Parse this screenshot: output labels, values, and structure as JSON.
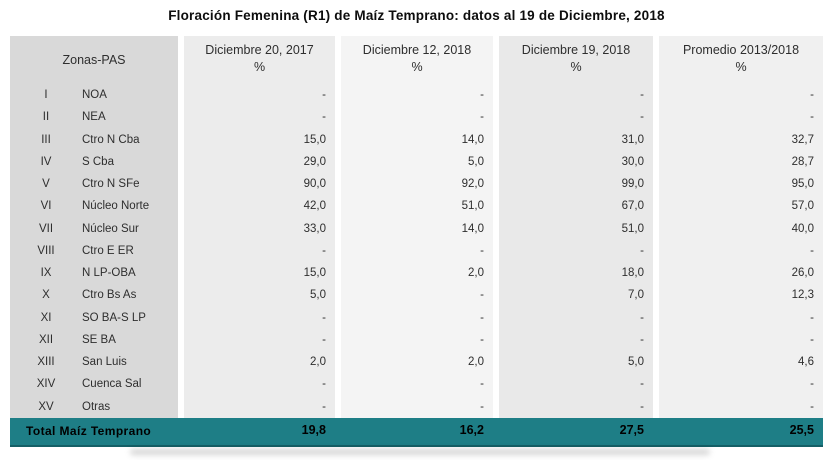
{
  "title": "Floración Femenina (R1) de Maíz Temprano: datos al 19 de Diciembre, 2018",
  "table": {
    "zone_header": "Zonas-PAS",
    "columns": [
      {
        "line1": "Diciembre 20, 2017",
        "line2": "%"
      },
      {
        "line1": "Diciembre 12, 2018",
        "line2": "%"
      },
      {
        "line1": "Diciembre 19, 2018",
        "line2": "%"
      },
      {
        "line1": "Promedio 2013/2018",
        "line2": "%"
      }
    ],
    "rows": [
      {
        "roman": "I",
        "name": "NOA",
        "values": [
          "-",
          "-",
          "-",
          "-"
        ]
      },
      {
        "roman": "II",
        "name": "NEA",
        "values": [
          "-",
          "-",
          "-",
          "-"
        ]
      },
      {
        "roman": "III",
        "name": "Ctro N Cba",
        "values": [
          "15,0",
          "14,0",
          "31,0",
          "32,7"
        ]
      },
      {
        "roman": "IV",
        "name": "S Cba",
        "values": [
          "29,0",
          "5,0",
          "30,0",
          "28,7"
        ]
      },
      {
        "roman": "V",
        "name": "Ctro N SFe",
        "values": [
          "90,0",
          "92,0",
          "99,0",
          "95,0"
        ]
      },
      {
        "roman": "VI",
        "name": "Núcleo Norte",
        "values": [
          "42,0",
          "51,0",
          "67,0",
          "57,0"
        ]
      },
      {
        "roman": "VII",
        "name": "Núcleo Sur",
        "values": [
          "33,0",
          "14,0",
          "51,0",
          "40,0"
        ]
      },
      {
        "roman": "VIII",
        "name": "Ctro E ER",
        "values": [
          "-",
          "-",
          "-",
          "-"
        ]
      },
      {
        "roman": "IX",
        "name": "N LP-OBA",
        "values": [
          "15,0",
          "2,0",
          "18,0",
          "26,0"
        ]
      },
      {
        "roman": "X",
        "name": "Ctro Bs As",
        "values": [
          "5,0",
          "-",
          "7,0",
          "12,3"
        ]
      },
      {
        "roman": "XI",
        "name": "SO BA-S LP",
        "values": [
          "-",
          "-",
          "-",
          "-"
        ]
      },
      {
        "roman": "XII",
        "name": "SE BA",
        "values": [
          "-",
          "-",
          "-",
          "-"
        ]
      },
      {
        "roman": "XIII",
        "name": "San Luis",
        "values": [
          "2,0",
          "2,0",
          "5,0",
          "4,6"
        ]
      },
      {
        "roman": "XIV",
        "name": "Cuenca Sal",
        "values": [
          "-",
          "-",
          "-",
          "-"
        ]
      },
      {
        "roman": "XV",
        "name": "Otras",
        "values": [
          "-",
          "-",
          "-",
          "-"
        ]
      }
    ],
    "total": {
      "label": "Total Maíz Temprano",
      "values": [
        "19,8",
        "16,2",
        "27,5",
        "25,5"
      ]
    }
  },
  "colors": {
    "title_color": "#0d0d0d",
    "text_color": "#2e2e2e",
    "zone_col_bg": "#d9d9d9",
    "col2_bg": "#ececec",
    "col3_bg": "#f4f4f4",
    "col4_bg": "#e9e9e9",
    "col5_bg": "#f0f0f0",
    "total_bg": "#1e7e86"
  }
}
